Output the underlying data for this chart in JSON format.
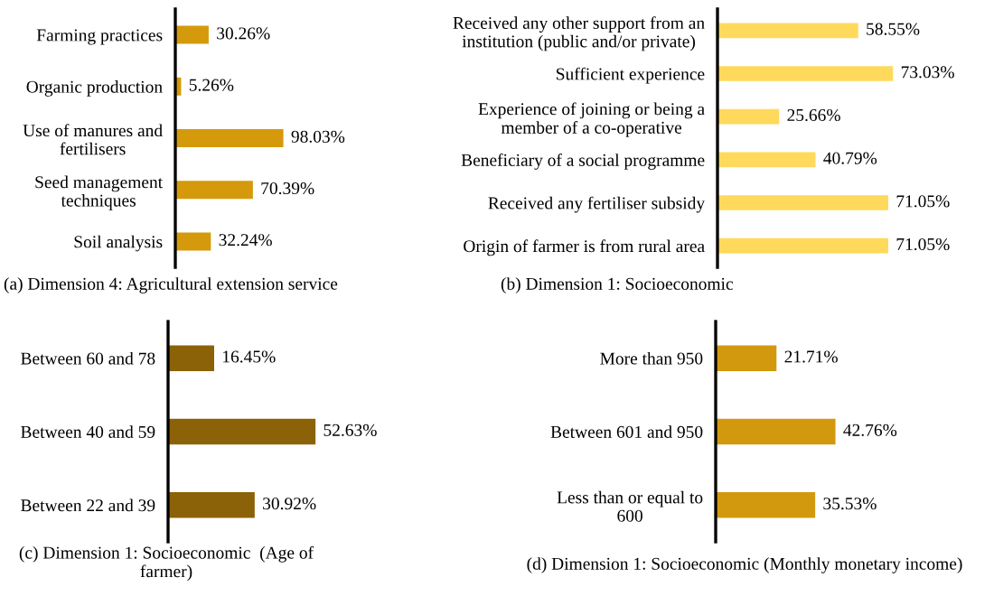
{
  "chart_data": [
    {
      "type": "bar",
      "orientation": "horizontal",
      "categories": [
        "Farming practices",
        "Organic production",
        "Use of manures and\nfertilisers",
        "Seed management\ntechniques",
        "Soil analysis"
      ],
      "values": [
        30.26,
        5.26,
        98.03,
        70.39,
        32.24
      ],
      "color": "#d49a0c",
      "value_labels": [
        "30.26%",
        "5.26%",
        "98.03%",
        "70.39%",
        "32.24%"
      ],
      "annotations": [
        "(a) Dimension 4: Agricultural extension service"
      ]
    },
    {
      "type": "bar",
      "orientation": "horizontal",
      "categories": [
        "Received any other support from an\ninstitution (public and/or private)",
        "Sufficient experience",
        "Experience of joining or being a\nmember of a co-operative",
        "Beneficiary of a social programme",
        "Received any fertiliser subsidy",
        "Origin of farmer is from rural area"
      ],
      "values": [
        58.55,
        73.03,
        25.66,
        40.79,
        71.05,
        71.05
      ],
      "color": "#ffd95c",
      "value_labels": [
        "58.55%",
        "73.03%",
        "25.66%",
        "40.79%",
        "71.05%",
        "71.05%"
      ],
      "annotations": [
        "(b) Dimension 1: Socioeconomic"
      ]
    },
    {
      "type": "bar",
      "orientation": "horizontal",
      "categories": [
        "Between 60 and 78",
        "Between 40 and 59",
        "Between 22 and 39"
      ],
      "values": [
        16.45,
        52.63,
        30.92
      ],
      "color": "#8c6208",
      "value_labels": [
        "16.45%",
        "52.63%",
        "30.92%"
      ],
      "annotations": [
        "(c) Dimension 1: Socioeconomic  (Age of\nfarmer)"
      ]
    },
    {
      "type": "bar",
      "orientation": "horizontal",
      "categories": [
        "More than 950",
        "Between 601 and 950",
        "Less than or equal to\n600"
      ],
      "values": [
        21.71,
        42.76,
        35.53
      ],
      "color": "#d2990e",
      "value_labels": [
        "21.71%",
        "42.76%",
        "35.53%"
      ],
      "annotations": [
        "(d) Dimension 1: Socioeconomic (Monthly monetary income)"
      ]
    }
  ]
}
